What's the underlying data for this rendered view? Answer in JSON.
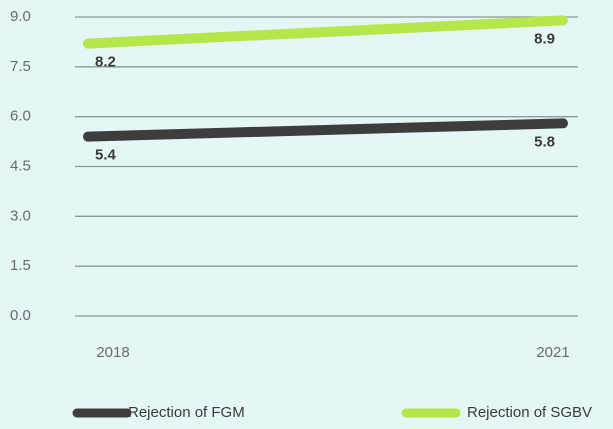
{
  "chart_data": {
    "type": "line",
    "categories": [
      "2018",
      "2021"
    ],
    "series": [
      {
        "name": "Rejection of FGM",
        "color": "#3d3d3d",
        "values": [
          5.4,
          5.8
        ]
      },
      {
        "name": "Rejection of SGBV",
        "color": "#b5e64a",
        "values": [
          8.2,
          8.9
        ]
      }
    ],
    "ylim": [
      0,
      9
    ],
    "yticks": [
      {
        "value": 0,
        "label": "0.0"
      },
      1.5,
      {
        "value": 3,
        "label": "3.0"
      },
      4.5,
      {
        "value": 6,
        "label": "6.0"
      },
      7.5,
      {
        "value": 9,
        "label": "9.0"
      }
    ],
    "grid": true,
    "legend": "bottom"
  }
}
